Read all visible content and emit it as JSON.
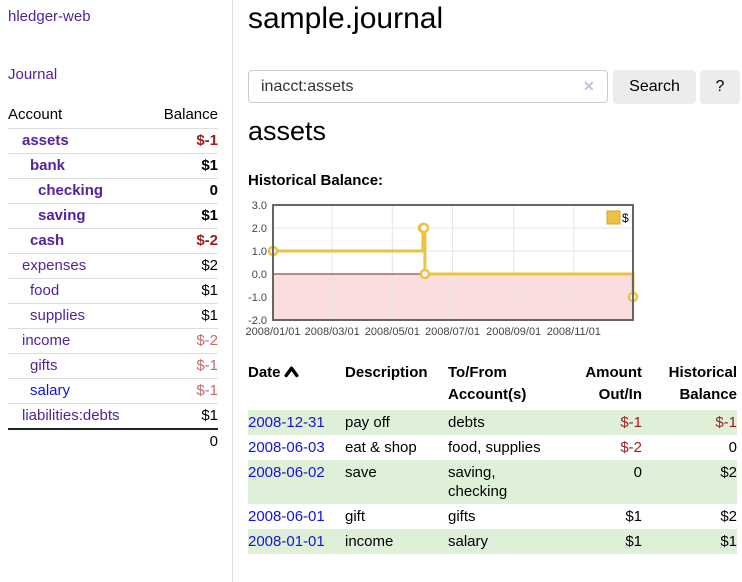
{
  "brand": "hledger-web",
  "nav": {
    "journal": "Journal"
  },
  "sidebar": {
    "headers": {
      "account": "Account",
      "balance": "Balance"
    },
    "accounts": [
      {
        "account": "assets",
        "depth": 1,
        "bold": true,
        "balance": "$-1",
        "style": "neg-strong"
      },
      {
        "account": "bank",
        "depth": 2,
        "bold": true,
        "balance": "$1",
        "style": "pos"
      },
      {
        "account": "checking",
        "depth": 3,
        "bold": true,
        "balance": "0",
        "style": "pos"
      },
      {
        "account": "saving",
        "depth": 3,
        "bold": true,
        "balance": "$1",
        "style": "pos"
      },
      {
        "account": "cash",
        "depth": 2,
        "bold": true,
        "balance": "$-2",
        "style": "neg-strong"
      },
      {
        "account": "expenses",
        "depth": 1,
        "bold": false,
        "balance": "$2",
        "style": "pos"
      },
      {
        "account": "food",
        "depth": 2,
        "bold": false,
        "balance": "$1",
        "style": "pos"
      },
      {
        "account": "supplies",
        "depth": 2,
        "bold": false,
        "balance": "$1",
        "style": "pos"
      },
      {
        "account": "income",
        "depth": 1,
        "bold": false,
        "balance": "$-2",
        "style": "neg-soft"
      },
      {
        "account": "gifts",
        "depth": 2,
        "bold": false,
        "balance": "$-1",
        "style": "neg-soft"
      },
      {
        "account": "salary",
        "depth": 2,
        "bold": false,
        "balance": "$-1",
        "style": "neg-soft",
        "link": "blue"
      },
      {
        "account": "liabilities:debts",
        "depth": 1,
        "bold": false,
        "balance": "$1",
        "style": "pos"
      }
    ],
    "total": "0"
  },
  "main": {
    "title": "sample.journal",
    "search": {
      "value": "inacct:assets",
      "clear": "✕",
      "button": "Search",
      "help": "?"
    },
    "heading": "assets",
    "section_label": "Historical Balance:"
  },
  "chart_data": {
    "type": "line",
    "step": true,
    "title": "Historical Balance of assets",
    "series": [
      {
        "name": "$",
        "color": "#edc240",
        "points": [
          [
            "2008-01-01",
            1.0
          ],
          [
            "2008-06-01",
            2.0
          ],
          [
            "2008-06-02",
            2.0
          ],
          [
            "2008-06-03",
            0.0
          ],
          [
            "2008-12-31",
            -1.0
          ]
        ]
      }
    ],
    "x_ticks": [
      "2008/01/01",
      "2008/03/01",
      "2008/05/01",
      "2008/07/01",
      "2008/09/01",
      "2008/11/01"
    ],
    "y_ticks": [
      "3.0",
      "2.0",
      "1.0",
      "0.0",
      "-1.0",
      "-2.0"
    ],
    "xlim": [
      "2008-01-01",
      "2008-12-31"
    ],
    "ylim": [
      -2,
      3
    ],
    "legend_label": "$",
    "legend_position": "top-right",
    "grid": true,
    "colors": {
      "grid": "#e6e6e6",
      "border": "#666666",
      "zero_line": "#8c1a1a",
      "negative_fill": "#fcdddd",
      "marker_fill": "#ffffff"
    }
  },
  "register": {
    "headers": {
      "date": "Date",
      "description": "Description",
      "accounts": "To/From Account(s)",
      "amount": "Amount Out/In",
      "balance": "Historical Balance"
    },
    "sort": {
      "column": "date",
      "direction": "asc"
    },
    "rows": [
      {
        "date": "2008-12-31",
        "description": "pay off",
        "accounts": "debts",
        "amount": "$-1",
        "amount_style": "neg-strong",
        "balance": "$-1",
        "balance_style": "neg-strong",
        "shaded": true
      },
      {
        "date": "2008-06-03",
        "description": "eat & shop",
        "accounts": "food, supplies",
        "amount": "$-2",
        "amount_style": "neg-strong",
        "balance": "0",
        "balance_style": "pos",
        "shaded": false
      },
      {
        "date": "2008-06-02",
        "description": "save",
        "accounts": "saving,\nchecking",
        "amount": "0",
        "amount_style": "pos",
        "balance": "$2",
        "balance_style": "pos",
        "shaded": true
      },
      {
        "date": "2008-06-01",
        "description": "gift",
        "accounts": "gifts",
        "amount": "$1",
        "amount_style": "pos",
        "balance": "$2",
        "balance_style": "pos",
        "shaded": false
      },
      {
        "date": "2008-01-01",
        "description": "income",
        "accounts": "salary",
        "amount": "$1",
        "amount_style": "pos",
        "balance": "$1",
        "balance_style": "pos",
        "shaded": true
      }
    ]
  }
}
